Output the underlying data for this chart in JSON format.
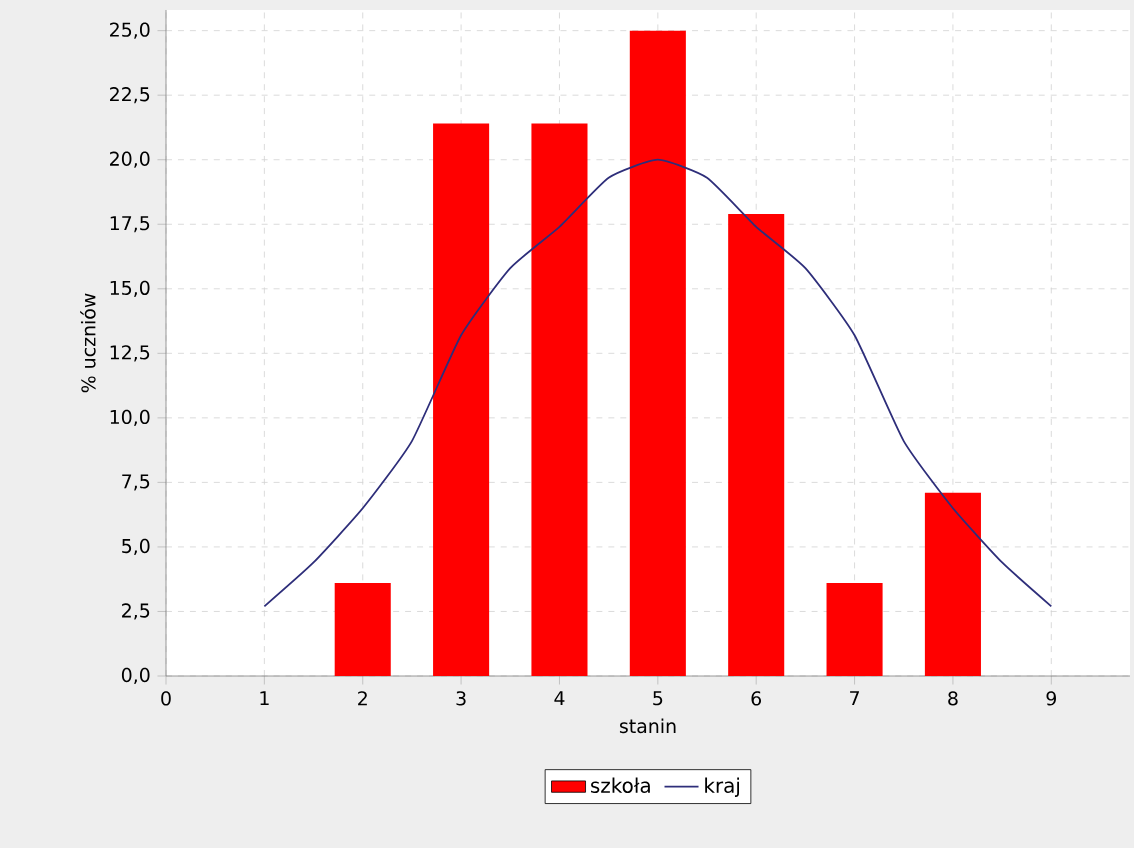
{
  "chart_data": {
    "type": "bar",
    "xlabel": "stanin",
    "ylabel": "% uczniów",
    "xlim": [
      0,
      9.8
    ],
    "xticks": [
      0,
      1,
      2,
      3,
      4,
      5,
      6,
      7,
      8,
      9
    ],
    "ylim": [
      0,
      25.8
    ],
    "yticks": [
      {
        "value": 0,
        "label": "0,0"
      },
      {
        "value": 2.5,
        "label": "2,5"
      },
      {
        "value": 5,
        "label": "5,0"
      },
      {
        "value": 7.5,
        "label": "7,5"
      },
      {
        "value": 10,
        "label": "10,0"
      },
      {
        "value": 12.5,
        "label": "12,5"
      },
      {
        "value": 15,
        "label": "15,0"
      },
      {
        "value": 17.5,
        "label": "17,5"
      },
      {
        "value": 20,
        "label": "20,0"
      },
      {
        "value": 22.5,
        "label": "22,5"
      },
      {
        "value": 25,
        "label": "25,0"
      }
    ],
    "grid": true,
    "legend": "bottom",
    "series": [
      {
        "name": "szkoła",
        "color": "#ff0000",
        "x": [
          2,
          3,
          4,
          5,
          6,
          7,
          8
        ],
        "values": [
          3.6,
          21.4,
          21.4,
          25.0,
          17.9,
          3.6,
          7.1
        ]
      },
      {
        "name": "kraj",
        "type": "line",
        "color": "#2e2e7a",
        "x": [
          1,
          1.5,
          2,
          2.5,
          3,
          3.5,
          4,
          4.5,
          5,
          5.5,
          6,
          6.5,
          7,
          7.5,
          8,
          8.5,
          9
        ],
        "values": [
          2.7,
          4.4,
          6.5,
          9.1,
          13.2,
          15.8,
          17.4,
          19.3,
          20.0,
          19.3,
          17.4,
          15.8,
          13.2,
          9.1,
          6.5,
          4.4,
          2.7
        ]
      }
    ]
  }
}
